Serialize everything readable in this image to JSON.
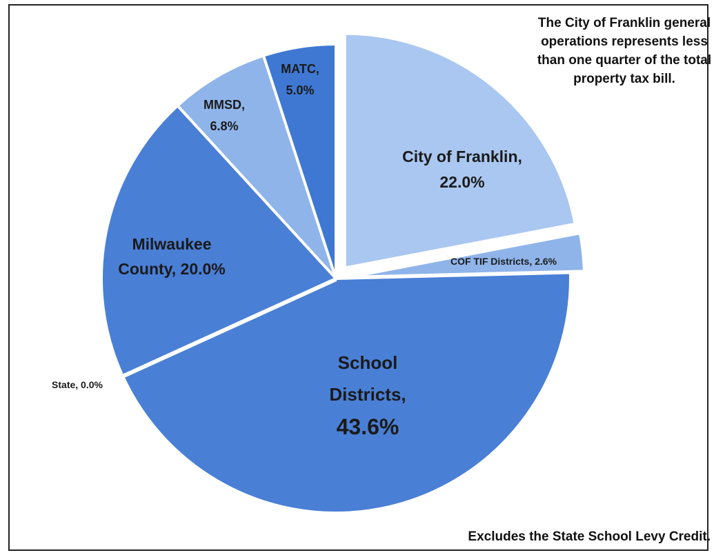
{
  "annotation_top": "The City of Franklin general operations represents less than one quarter of the total property tax bill.",
  "annotation_bottom": "Excludes the State School Levy Credit.",
  "colors": {
    "franklin": "#a9c7f0",
    "tif": "#8fb4ea",
    "school": "#4a7fd6",
    "state": "#4a7fd6",
    "county": "#4a7fd6",
    "mmsd": "#8fb4ea",
    "matc": "#3f78d3",
    "border": "#ffffff"
  },
  "chart_data": {
    "type": "pie",
    "title": "",
    "slices": [
      {
        "key": "franklin",
        "label": "City of Franklin, 22.0%",
        "value": 22.0,
        "explode": true
      },
      {
        "key": "tif",
        "label": "COF TIF Districts, 2.6%",
        "value": 2.6,
        "explode": true
      },
      {
        "key": "school",
        "label": "School Districts, 43.6%",
        "value": 43.6,
        "explode": false
      },
      {
        "key": "state",
        "label": "State, 0.0%",
        "value": 0.0,
        "explode": false
      },
      {
        "key": "county",
        "label": "Milwaukee County, 20.0%",
        "value": 20.0,
        "explode": false
      },
      {
        "key": "mmsd",
        "label": "MMSD, 6.8%",
        "value": 6.8,
        "explode": false
      },
      {
        "key": "matc",
        "label": "MATC, 5.0%",
        "value": 5.0,
        "explode": false
      }
    ]
  }
}
